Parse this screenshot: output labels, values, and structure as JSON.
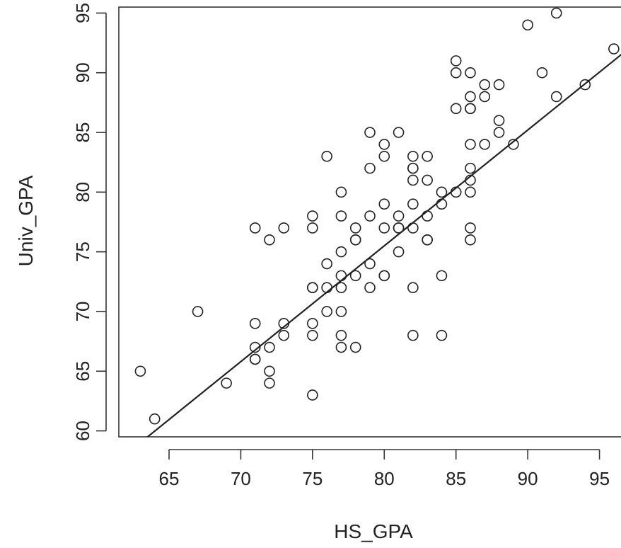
{
  "chart_data": {
    "type": "scatter",
    "title": "",
    "xlabel": "HS_GPA",
    "ylabel": "Univ_GPA",
    "xlim": [
      61.5,
      96.5
    ],
    "ylim": [
      59.5,
      95.5
    ],
    "xticks": [
      65,
      70,
      75,
      80,
      85,
      90,
      95
    ],
    "yticks": [
      60,
      65,
      70,
      75,
      80,
      85,
      90,
      95
    ],
    "xtick_labels": [
      "65",
      "70",
      "75",
      "80",
      "85",
      "90",
      "95"
    ],
    "ytick_labels": [
      "60",
      "65",
      "70",
      "75",
      "80",
      "85",
      "90",
      "95"
    ],
    "grid": false,
    "marker": "open-circle",
    "point_color": "#222222",
    "points": [
      [
        63,
        65
      ],
      [
        64,
        61
      ],
      [
        67,
        70
      ],
      [
        69,
        64
      ],
      [
        71,
        77
      ],
      [
        71,
        69
      ],
      [
        71,
        67
      ],
      [
        71,
        66
      ],
      [
        71,
        66
      ],
      [
        72,
        76
      ],
      [
        72,
        67
      ],
      [
        72,
        65
      ],
      [
        72,
        64
      ],
      [
        73,
        77
      ],
      [
        73,
        69
      ],
      [
        73,
        68
      ],
      [
        75,
        78
      ],
      [
        75,
        77
      ],
      [
        75,
        72
      ],
      [
        75,
        72
      ],
      [
        75,
        69
      ],
      [
        75,
        68
      ],
      [
        75,
        63
      ],
      [
        76,
        83
      ],
      [
        76,
        74
      ],
      [
        76,
        72
      ],
      [
        76,
        70
      ],
      [
        77,
        80
      ],
      [
        77,
        78
      ],
      [
        77,
        75
      ],
      [
        77,
        73
      ],
      [
        77,
        72
      ],
      [
        77,
        70
      ],
      [
        77,
        68
      ],
      [
        77,
        67
      ],
      [
        78,
        77
      ],
      [
        78,
        76
      ],
      [
        78,
        76
      ],
      [
        78,
        73
      ],
      [
        78,
        67
      ],
      [
        79,
        85
      ],
      [
        79,
        82
      ],
      [
        79,
        78
      ],
      [
        79,
        74
      ],
      [
        79,
        72
      ],
      [
        80,
        84
      ],
      [
        80,
        83
      ],
      [
        80,
        79
      ],
      [
        80,
        77
      ],
      [
        80,
        73
      ],
      [
        80,
        73
      ],
      [
        81,
        85
      ],
      [
        81,
        78
      ],
      [
        81,
        77
      ],
      [
        81,
        77
      ],
      [
        81,
        75
      ],
      [
        82,
        83
      ],
      [
        82,
        82
      ],
      [
        82,
        82
      ],
      [
        82,
        81
      ],
      [
        82,
        79
      ],
      [
        82,
        77
      ],
      [
        82,
        72
      ],
      [
        82,
        68
      ],
      [
        83,
        83
      ],
      [
        83,
        81
      ],
      [
        83,
        78
      ],
      [
        83,
        76
      ],
      [
        83,
        76
      ],
      [
        84,
        80
      ],
      [
        84,
        79
      ],
      [
        84,
        73
      ],
      [
        84,
        68
      ],
      [
        85,
        91
      ],
      [
        85,
        90
      ],
      [
        85,
        87
      ],
      [
        85,
        80
      ],
      [
        86,
        90
      ],
      [
        86,
        88
      ],
      [
        86,
        87
      ],
      [
        86,
        87
      ],
      [
        86,
        84
      ],
      [
        86,
        82
      ],
      [
        86,
        81
      ],
      [
        86,
        80
      ],
      [
        86,
        77
      ],
      [
        86,
        76
      ],
      [
        87,
        89
      ],
      [
        87,
        88
      ],
      [
        87,
        84
      ],
      [
        88,
        89
      ],
      [
        88,
        86
      ],
      [
        88,
        85
      ],
      [
        89,
        84
      ],
      [
        90,
        94
      ],
      [
        91,
        90
      ],
      [
        92,
        95
      ],
      [
        92,
        88
      ],
      [
        94,
        89
      ],
      [
        96,
        92
      ]
    ],
    "regression_line": {
      "intercept": -2.1,
      "slope": 0.97
    }
  }
}
